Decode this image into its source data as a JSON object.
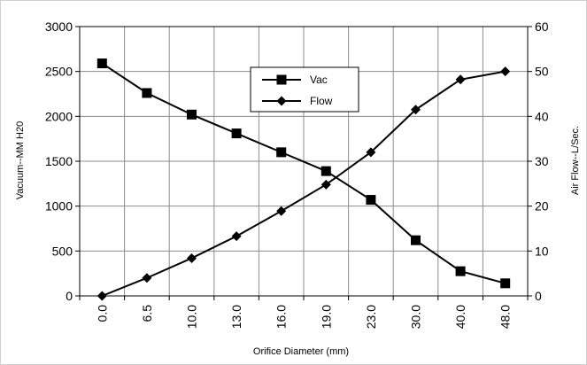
{
  "chart_data": {
    "type": "line",
    "categories": [
      "0.0",
      "6.5",
      "10.0",
      "13.0",
      "16.0",
      "19.0",
      "23.0",
      "30.0",
      "40.0",
      "48.0"
    ],
    "series": [
      {
        "name": "Vac",
        "axis": "left",
        "marker": "square",
        "values": [
          2590,
          2260,
          2020,
          1810,
          1600,
          1390,
          1070,
          620,
          275,
          140
        ]
      },
      {
        "name": "Flow",
        "axis": "right",
        "marker": "diamond",
        "values": [
          0,
          4,
          8.4,
          13.3,
          18.9,
          24.8,
          32,
          41.5,
          48.2,
          50
        ]
      }
    ],
    "xlabel": "Orifice Diameter (mm)",
    "ylabel": "Vacuum--MM H20",
    "y2label": "Air Flow--L/Sec.",
    "ylim": [
      0,
      3000
    ],
    "y2lim": [
      0,
      60
    ],
    "yticks": [
      0,
      500,
      1000,
      1500,
      2000,
      2500,
      3000
    ],
    "y2ticks": [
      0,
      10,
      20,
      30,
      40,
      50,
      60
    ],
    "grid": true,
    "legend_position": "top-center",
    "line_color": "#000000"
  }
}
